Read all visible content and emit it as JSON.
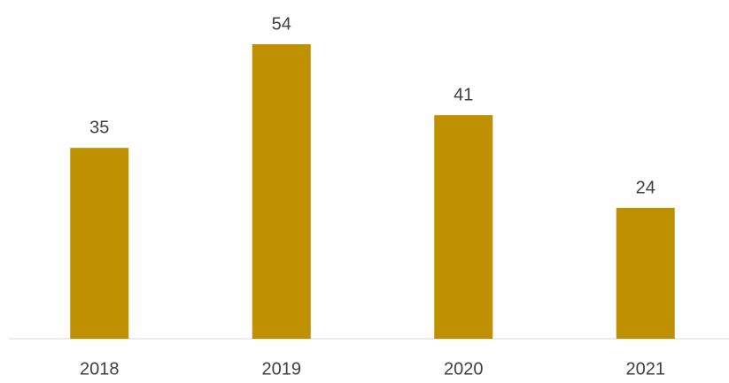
{
  "chart_data": {
    "type": "bar",
    "categories": [
      "2018",
      "2019",
      "2020",
      "2021"
    ],
    "values": [
      35,
      54,
      41,
      24
    ],
    "color": "#bf9000"
  }
}
